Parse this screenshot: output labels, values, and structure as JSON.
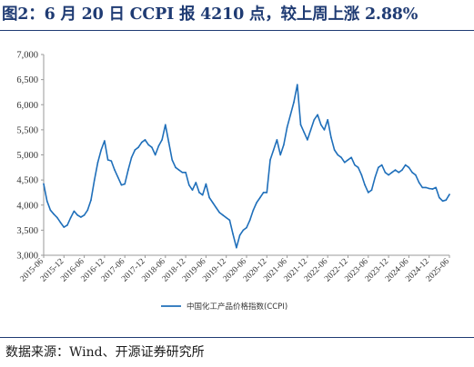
{
  "title": "图2：6 月 20 日 CCPI 报 4210 点，较上周上涨 2.88%",
  "source": "数据来源：Wind、开源证券研究所",
  "colors": {
    "line": "#1f6fba",
    "rule": "#1f3b73",
    "axis": "#9a9a9a"
  },
  "chart_data": {
    "type": "line",
    "ylim": [
      3000,
      7000
    ],
    "yticks": [
      "3,000",
      "3,500",
      "4,000",
      "4,500",
      "5,000",
      "5,500",
      "6,000",
      "6,500",
      "7,000"
    ],
    "xticks": [
      "2015-06",
      "2015-12",
      "2016-06",
      "2016-12",
      "2017-06",
      "2017-12",
      "2018-06",
      "2018-12",
      "2019-06",
      "2019-12",
      "2020-06",
      "2020-12",
      "2021-06",
      "2021-12",
      "2022-06",
      "2022-12",
      "2023-06",
      "2023-12",
      "2024-06",
      "2024-12",
      "2025-06"
    ],
    "grid": false,
    "legend_position": "bottom",
    "series": [
      {
        "name": "中国化工产品价格指数(CCPI)",
        "x": [
          "2015-06",
          "2015-07",
          "2015-08",
          "2015-09",
          "2015-10",
          "2015-11",
          "2015-12",
          "2016-01",
          "2016-02",
          "2016-03",
          "2016-04",
          "2016-05",
          "2016-06",
          "2016-07",
          "2016-08",
          "2016-09",
          "2016-10",
          "2016-11",
          "2016-12",
          "2017-01",
          "2017-02",
          "2017-03",
          "2017-04",
          "2017-05",
          "2017-06",
          "2017-07",
          "2017-08",
          "2017-09",
          "2017-10",
          "2017-11",
          "2017-12",
          "2018-01",
          "2018-02",
          "2018-03",
          "2018-04",
          "2018-05",
          "2018-06",
          "2018-07",
          "2018-08",
          "2018-09",
          "2018-10",
          "2018-11",
          "2018-12",
          "2019-01",
          "2019-02",
          "2019-03",
          "2019-04",
          "2019-05",
          "2019-06",
          "2019-07",
          "2019-08",
          "2019-09",
          "2019-10",
          "2019-11",
          "2019-12",
          "2020-01",
          "2020-02",
          "2020-03",
          "2020-04",
          "2020-05",
          "2020-06",
          "2020-07",
          "2020-08",
          "2020-09",
          "2020-10",
          "2020-11",
          "2020-12",
          "2021-01",
          "2021-02",
          "2021-03",
          "2021-04",
          "2021-05",
          "2021-06",
          "2021-07",
          "2021-08",
          "2021-09",
          "2021-10",
          "2021-11",
          "2021-12",
          "2022-01",
          "2022-02",
          "2022-03",
          "2022-04",
          "2022-05",
          "2022-06",
          "2022-07",
          "2022-08",
          "2022-09",
          "2022-10",
          "2022-11",
          "2022-12",
          "2023-01",
          "2023-02",
          "2023-03",
          "2023-04",
          "2023-05",
          "2023-06",
          "2023-07",
          "2023-08",
          "2023-09",
          "2023-10",
          "2023-11",
          "2023-12",
          "2024-01",
          "2024-02",
          "2024-03",
          "2024-04",
          "2024-05",
          "2024-06",
          "2024-07",
          "2024-08",
          "2024-09",
          "2024-10",
          "2024-11",
          "2024-12",
          "2025-01",
          "2025-02",
          "2025-03",
          "2025-04",
          "2025-05",
          "2025-06"
        ],
        "values": [
          4420,
          4080,
          3900,
          3820,
          3750,
          3650,
          3560,
          3600,
          3750,
          3880,
          3800,
          3760,
          3800,
          3900,
          4100,
          4500,
          4850,
          5100,
          5280,
          4900,
          4880,
          4700,
          4550,
          4400,
          4420,
          4700,
          4950,
          5100,
          5150,
          5250,
          5300,
          5200,
          5150,
          5000,
          5180,
          5300,
          5600,
          5250,
          4900,
          4750,
          4700,
          4650,
          4650,
          4400,
          4300,
          4450,
          4250,
          4200,
          4420,
          4150,
          4050,
          3950,
          3850,
          3800,
          3750,
          3700,
          3420,
          3150,
          3400,
          3500,
          3550,
          3700,
          3900,
          4050,
          4150,
          4250,
          4250,
          4900,
          5100,
          5300,
          5000,
          5200,
          5550,
          5800,
          6050,
          6400,
          5600,
          5450,
          5300,
          5500,
          5700,
          5800,
          5600,
          5500,
          5700,
          5350,
          5100,
          5000,
          4950,
          4850,
          4900,
          4950,
          4800,
          4750,
          4600,
          4400,
          4250,
          4300,
          4550,
          4750,
          4800,
          4650,
          4600,
          4650,
          4700,
          4650,
          4700,
          4800,
          4750,
          4650,
          4600,
          4450,
          4350,
          4350,
          4330,
          4320,
          4350,
          4150,
          4080,
          4100,
          4210
        ]
      }
    ]
  }
}
